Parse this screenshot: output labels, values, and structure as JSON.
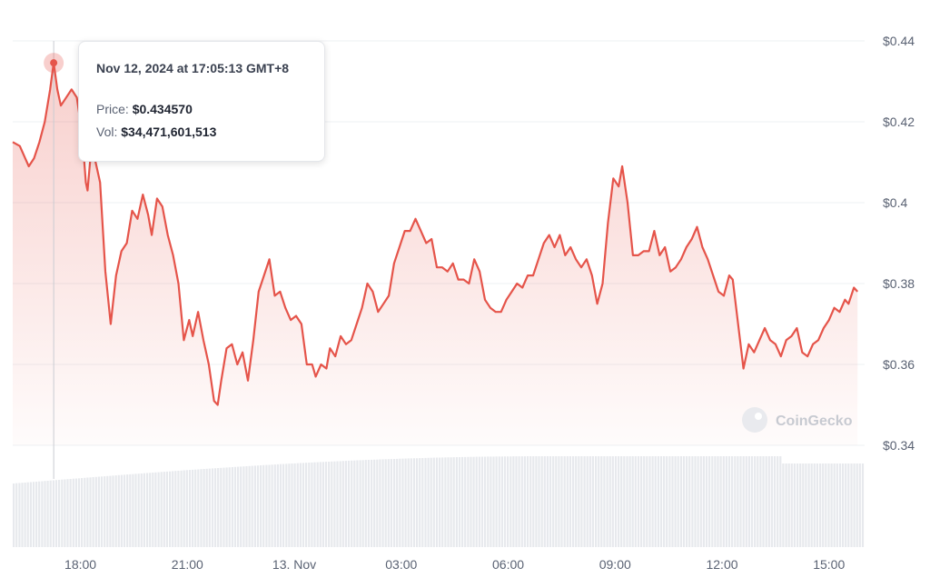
{
  "chart_data": {
    "type": "line",
    "y_ticks": [
      "$0.34",
      "$0.36",
      "$0.38",
      "$0.4",
      "$0.42",
      "$0.44"
    ],
    "y_tick_values": [
      0.34,
      0.36,
      0.38,
      0.4,
      0.42,
      0.44
    ],
    "ylim": [
      0.33,
      0.445
    ],
    "x_ticks": [
      "18:00",
      "21:00",
      "13. Nov",
      "03:00",
      "06:00",
      "09:00",
      "12:00",
      "15:00"
    ],
    "x_tick_hours": [
      18,
      21,
      24,
      27,
      30,
      33,
      36,
      39
    ],
    "x_range_hours": [
      16.1,
      40.0
    ],
    "grid": true,
    "watermark": "CoinGecko",
    "line_color": "#e5544a",
    "series": [
      {
        "price_points": [
          [
            16.1,
            0.415
          ],
          [
            16.3,
            0.414
          ],
          [
            16.45,
            0.411
          ],
          [
            16.55,
            0.409
          ],
          [
            16.7,
            0.411
          ],
          [
            16.85,
            0.415
          ],
          [
            17.0,
            0.42
          ],
          [
            17.15,
            0.428
          ],
          [
            17.25,
            0.4346
          ],
          [
            17.35,
            0.428
          ],
          [
            17.45,
            0.424
          ],
          [
            17.6,
            0.426
          ],
          [
            17.75,
            0.428
          ],
          [
            17.9,
            0.426
          ],
          [
            18.05,
            0.417
          ],
          [
            18.15,
            0.405
          ],
          [
            18.2,
            0.403
          ],
          [
            18.3,
            0.413
          ],
          [
            18.4,
            0.411
          ],
          [
            18.55,
            0.405
          ],
          [
            18.7,
            0.383
          ],
          [
            18.85,
            0.37
          ],
          [
            19.0,
            0.382
          ],
          [
            19.15,
            0.388
          ],
          [
            19.3,
            0.39
          ],
          [
            19.45,
            0.398
          ],
          [
            19.6,
            0.396
          ],
          [
            19.75,
            0.402
          ],
          [
            19.9,
            0.397
          ],
          [
            20.0,
            0.392
          ],
          [
            20.15,
            0.401
          ],
          [
            20.3,
            0.399
          ],
          [
            20.45,
            0.392
          ],
          [
            20.6,
            0.387
          ],
          [
            20.75,
            0.38
          ],
          [
            20.9,
            0.366
          ],
          [
            21.05,
            0.371
          ],
          [
            21.15,
            0.367
          ],
          [
            21.3,
            0.373
          ],
          [
            21.45,
            0.366
          ],
          [
            21.6,
            0.36
          ],
          [
            21.75,
            0.351
          ],
          [
            21.85,
            0.35
          ],
          [
            21.95,
            0.356
          ],
          [
            22.1,
            0.364
          ],
          [
            22.25,
            0.365
          ],
          [
            22.4,
            0.36
          ],
          [
            22.55,
            0.363
          ],
          [
            22.7,
            0.356
          ],
          [
            22.85,
            0.366
          ],
          [
            23.0,
            0.378
          ],
          [
            23.15,
            0.382
          ],
          [
            23.3,
            0.386
          ],
          [
            23.45,
            0.377
          ],
          [
            23.6,
            0.378
          ],
          [
            23.75,
            0.374
          ],
          [
            23.9,
            0.371
          ],
          [
            24.05,
            0.372
          ],
          [
            24.2,
            0.37
          ],
          [
            24.35,
            0.36
          ],
          [
            24.5,
            0.36
          ],
          [
            24.6,
            0.357
          ],
          [
            24.75,
            0.36
          ],
          [
            24.9,
            0.359
          ],
          [
            25.0,
            0.364
          ],
          [
            25.15,
            0.362
          ],
          [
            25.3,
            0.367
          ],
          [
            25.45,
            0.365
          ],
          [
            25.6,
            0.366
          ],
          [
            25.75,
            0.37
          ],
          [
            25.9,
            0.374
          ],
          [
            26.05,
            0.38
          ],
          [
            26.2,
            0.378
          ],
          [
            26.35,
            0.373
          ],
          [
            26.5,
            0.375
          ],
          [
            26.65,
            0.377
          ],
          [
            26.8,
            0.385
          ],
          [
            26.95,
            0.389
          ],
          [
            27.1,
            0.393
          ],
          [
            27.25,
            0.393
          ],
          [
            27.4,
            0.396
          ],
          [
            27.55,
            0.393
          ],
          [
            27.7,
            0.39
          ],
          [
            27.85,
            0.391
          ],
          [
            28.0,
            0.384
          ],
          [
            28.15,
            0.384
          ],
          [
            28.3,
            0.383
          ],
          [
            28.45,
            0.385
          ],
          [
            28.6,
            0.381
          ],
          [
            28.75,
            0.381
          ],
          [
            28.9,
            0.38
          ],
          [
            29.05,
            0.386
          ],
          [
            29.2,
            0.383
          ],
          [
            29.35,
            0.376
          ],
          [
            29.5,
            0.374
          ],
          [
            29.65,
            0.373
          ],
          [
            29.8,
            0.373
          ],
          [
            29.95,
            0.376
          ],
          [
            30.1,
            0.378
          ],
          [
            30.25,
            0.38
          ],
          [
            30.4,
            0.379
          ],
          [
            30.55,
            0.382
          ],
          [
            30.7,
            0.382
          ],
          [
            30.85,
            0.386
          ],
          [
            31.0,
            0.39
          ],
          [
            31.15,
            0.392
          ],
          [
            31.3,
            0.389
          ],
          [
            31.45,
            0.392
          ],
          [
            31.6,
            0.387
          ],
          [
            31.75,
            0.389
          ],
          [
            31.9,
            0.386
          ],
          [
            32.05,
            0.384
          ],
          [
            32.2,
            0.386
          ],
          [
            32.35,
            0.382
          ],
          [
            32.5,
            0.375
          ],
          [
            32.65,
            0.38
          ],
          [
            32.8,
            0.395
          ],
          [
            32.95,
            0.406
          ],
          [
            33.1,
            0.404
          ],
          [
            33.2,
            0.409
          ],
          [
            33.35,
            0.4
          ],
          [
            33.5,
            0.387
          ],
          [
            33.65,
            0.387
          ],
          [
            33.8,
            0.388
          ],
          [
            33.95,
            0.388
          ],
          [
            34.1,
            0.393
          ],
          [
            34.25,
            0.387
          ],
          [
            34.4,
            0.389
          ],
          [
            34.55,
            0.383
          ],
          [
            34.7,
            0.384
          ],
          [
            34.85,
            0.386
          ],
          [
            35.0,
            0.389
          ],
          [
            35.15,
            0.391
          ],
          [
            35.3,
            0.394
          ],
          [
            35.45,
            0.389
          ],
          [
            35.6,
            0.386
          ],
          [
            35.75,
            0.382
          ],
          [
            35.9,
            0.378
          ],
          [
            36.05,
            0.377
          ],
          [
            36.2,
            0.382
          ],
          [
            36.3,
            0.381
          ],
          [
            36.45,
            0.37
          ],
          [
            36.6,
            0.359
          ],
          [
            36.75,
            0.365
          ],
          [
            36.9,
            0.363
          ],
          [
            37.05,
            0.366
          ],
          [
            37.2,
            0.369
          ],
          [
            37.35,
            0.366
          ],
          [
            37.5,
            0.365
          ],
          [
            37.65,
            0.362
          ],
          [
            37.8,
            0.366
          ],
          [
            37.95,
            0.367
          ],
          [
            38.1,
            0.369
          ],
          [
            38.25,
            0.363
          ],
          [
            38.4,
            0.362
          ],
          [
            38.55,
            0.365
          ],
          [
            38.7,
            0.366
          ],
          [
            38.85,
            0.369
          ],
          [
            39.0,
            0.371
          ],
          [
            39.15,
            0.374
          ],
          [
            39.3,
            0.373
          ],
          [
            39.45,
            0.376
          ],
          [
            39.55,
            0.375
          ],
          [
            39.7,
            0.379
          ],
          [
            39.8,
            0.378
          ]
        ]
      }
    ],
    "volume_base_fraction": 0.3
  },
  "tooltip": {
    "date": "Nov 12, 2024 at 17:05:13 GMT+8",
    "price_label": "Price:",
    "price_value": "$0.434570",
    "vol_label": "Vol:",
    "vol_value": "$34,471,601,513",
    "hover_hour": 17.25,
    "hover_price": 0.43457
  }
}
